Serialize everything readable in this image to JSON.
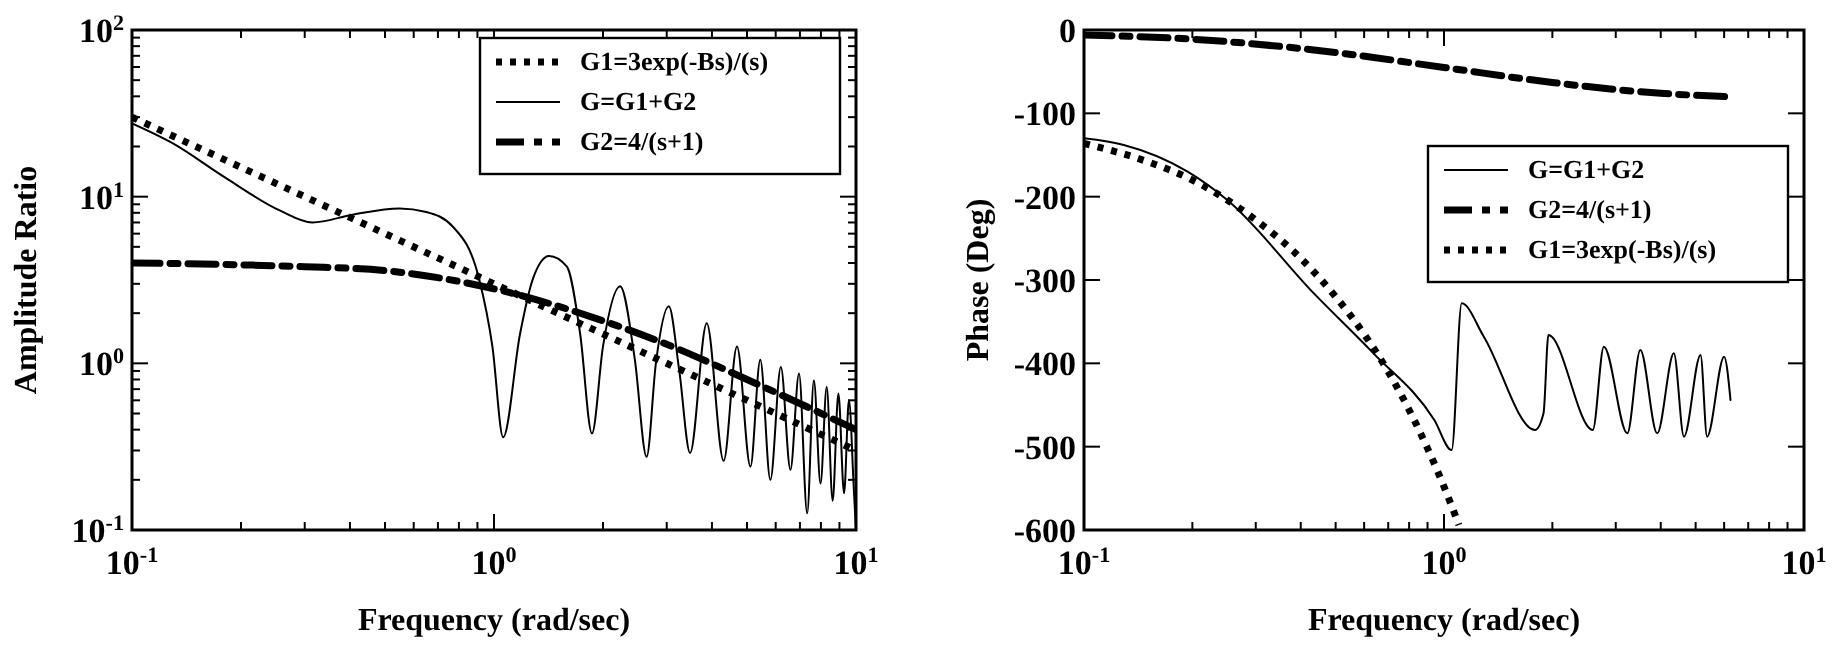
{
  "chart_data": [
    {
      "type": "line",
      "xlabel": "Frequency (rad/sec)",
      "ylabel": "Amplitude Ratio",
      "log": "xy",
      "grid": false,
      "legend": "top right",
      "xlim": [
        0.1,
        10
      ],
      "ylim": [
        0.1,
        100
      ],
      "xticks": [
        {
          "value": 0.1,
          "label": "10$^{-1}$"
        },
        {
          "value": 0.2,
          "label": null
        },
        {
          "value": 0.3,
          "label": null
        },
        {
          "value": 0.4,
          "label": null
        },
        {
          "value": 0.5,
          "label": null
        },
        {
          "value": 0.6,
          "label": null
        },
        {
          "value": 0.7,
          "label": null
        },
        {
          "value": 0.8,
          "label": null
        },
        {
          "value": 0.9,
          "label": null
        },
        {
          "value": 1,
          "label": "10$^{0}$"
        },
        {
          "value": 2,
          "label": null
        },
        {
          "value": 3,
          "label": null
        },
        {
          "value": 4,
          "label": null
        },
        {
          "value": 5,
          "label": null
        },
        {
          "value": 6,
          "label": null
        },
        {
          "value": 7,
          "label": null
        },
        {
          "value": 8,
          "label": null
        },
        {
          "value": 9,
          "label": null
        },
        {
          "value": 10,
          "label": "10$^{1}$"
        }
      ],
      "yticks": [
        {
          "value": 0.1,
          "label": "10$^{-1}$"
        },
        {
          "value": 1,
          "label": "10$^{0}$"
        },
        {
          "value": 10,
          "label": "10$^{1}$"
        },
        {
          "value": 100,
          "label": "10$^{2}$"
        }
      ],
      "series": [
        {
          "name": "G1=3exp(-Bs)/(s)",
          "color": "#000000",
          "line_style": "dotted",
          "x": [
            0.1,
            1,
            10
          ],
          "values": [
            30,
            3,
            0.3
          ]
        },
        {
          "name": "G=G1+G2",
          "color": "#000000",
          "line_style": "solid",
          "x": [
            0.1,
            0.129,
            0.181,
            0.255,
            0.315,
            0.407,
            0.548,
            0.65,
            0.77,
            0.91,
            0.99,
            1.06,
            1.18,
            1.28,
            1.42,
            1.59,
            1.73,
            1.865,
            2.0,
            2.23,
            2.45,
            2.64,
            2.8,
            3.04,
            3.25,
            3.48,
            3.87,
            4.31,
            4.69,
            5.11,
            5.44,
            5.8,
            6.2,
            6.59,
            6.96,
            7.33,
            7.65,
            7.98,
            8.3,
            8.62,
            8.94,
            9.27,
            9.56,
            9.87,
            10
          ],
          "values": [
            27.5,
            21,
            13,
            8.3,
            7.0,
            7.8,
            8.5,
            8.1,
            6.6,
            3.2,
            1.26,
            0.36,
            1.5,
            3.2,
            4.4,
            3.8,
            1.5,
            0.38,
            1.26,
            2.9,
            1.05,
            0.275,
            1.0,
            2.2,
            0.9,
            0.29,
            1.74,
            0.26,
            1.26,
            0.24,
            1.05,
            0.2,
            0.95,
            0.23,
            0.87,
            0.126,
            0.79,
            0.19,
            0.72,
            0.15,
            0.66,
            0.166,
            0.6,
            0.17,
            0.1
          ]
        },
        {
          "name": "G2=4/(s+1)",
          "color": "#000000",
          "line_style": "dashdot",
          "x": [
            0.1,
            0.2,
            0.3,
            0.5,
            1,
            2,
            3,
            5,
            10
          ],
          "values": [
            4,
            3.9,
            3.8,
            3.6,
            2.8,
            1.8,
            1.3,
            0.8,
            0.4
          ]
        }
      ]
    },
    {
      "type": "line",
      "xlabel": "Frequency (rad/sec)",
      "ylabel": "Phase (Deg)",
      "log": "x",
      "grid": false,
      "legend": "right",
      "xlim": [
        0.1,
        10
      ],
      "ylim": [
        -600,
        0
      ],
      "xticks": [
        {
          "value": 0.1,
          "label": "10$^{-1}$"
        },
        {
          "value": 0.2,
          "label": null
        },
        {
          "value": 0.3,
          "label": null
        },
        {
          "value": 0.4,
          "label": null
        },
        {
          "value": 0.5,
          "label": null
        },
        {
          "value": 0.6,
          "label": null
        },
        {
          "value": 0.7,
          "label": null
        },
        {
          "value": 0.8,
          "label": null
        },
        {
          "value": 0.9,
          "label": null
        },
        {
          "value": 1,
          "label": "10$^{0}$"
        },
        {
          "value": 2,
          "label": null
        },
        {
          "value": 3,
          "label": null
        },
        {
          "value": 4,
          "label": null
        },
        {
          "value": 5,
          "label": null
        },
        {
          "value": 6,
          "label": null
        },
        {
          "value": 7,
          "label": null
        },
        {
          "value": 8,
          "label": null
        },
        {
          "value": 9,
          "label": null
        },
        {
          "value": 10,
          "label": "10$^{1}$"
        }
      ],
      "yticks": [
        0,
        -100,
        -200,
        -300,
        -400,
        -500,
        -600
      ],
      "series": [
        {
          "name": "G=G1+G2",
          "color": "#000000",
          "line_style": "solid",
          "x": [
            0.1,
            0.129,
            0.194,
            0.25,
            0.435,
            0.637,
            0.94,
            1.05,
            1.12,
            1.29,
            1.79,
            1.89,
            1.95,
            2.59,
            2.78,
            3.23,
            3.51,
            3.91,
            4.35,
            4.64,
            5.16,
            5.38,
            6.0,
            6.25
          ],
          "values": [
            -130,
            -138,
            -170,
            -204,
            -316,
            -388,
            -468,
            -504,
            -328,
            -368,
            -480,
            -460,
            -366,
            -480,
            -380,
            -484,
            -384,
            -484,
            -388,
            -488,
            -390,
            -488,
            -392,
            -444
          ]
        },
        {
          "name": "G2=4/(s+1)",
          "color": "#000000",
          "line_style": "dashdot",
          "x": [
            0.1,
            0.2,
            0.5,
            1,
            2,
            4,
            6.1
          ],
          "values": [
            -6,
            -11,
            -27,
            -45,
            -63,
            -76,
            -80
          ]
        },
        {
          "name": "G1=3exp(-Bs)/(s)",
          "color": "#000000",
          "line_style": "dotted",
          "x": [
            0.1,
            0.15,
            0.2,
            0.25,
            0.3,
            0.4,
            0.5,
            0.6,
            0.7,
            0.8,
            0.9,
            1.0,
            1.1
          ],
          "values": [
            -136,
            -158,
            -180,
            -204,
            -228,
            -274,
            -320,
            -365,
            -410,
            -456,
            -502,
            -548,
            -594
          ]
        }
      ]
    }
  ]
}
